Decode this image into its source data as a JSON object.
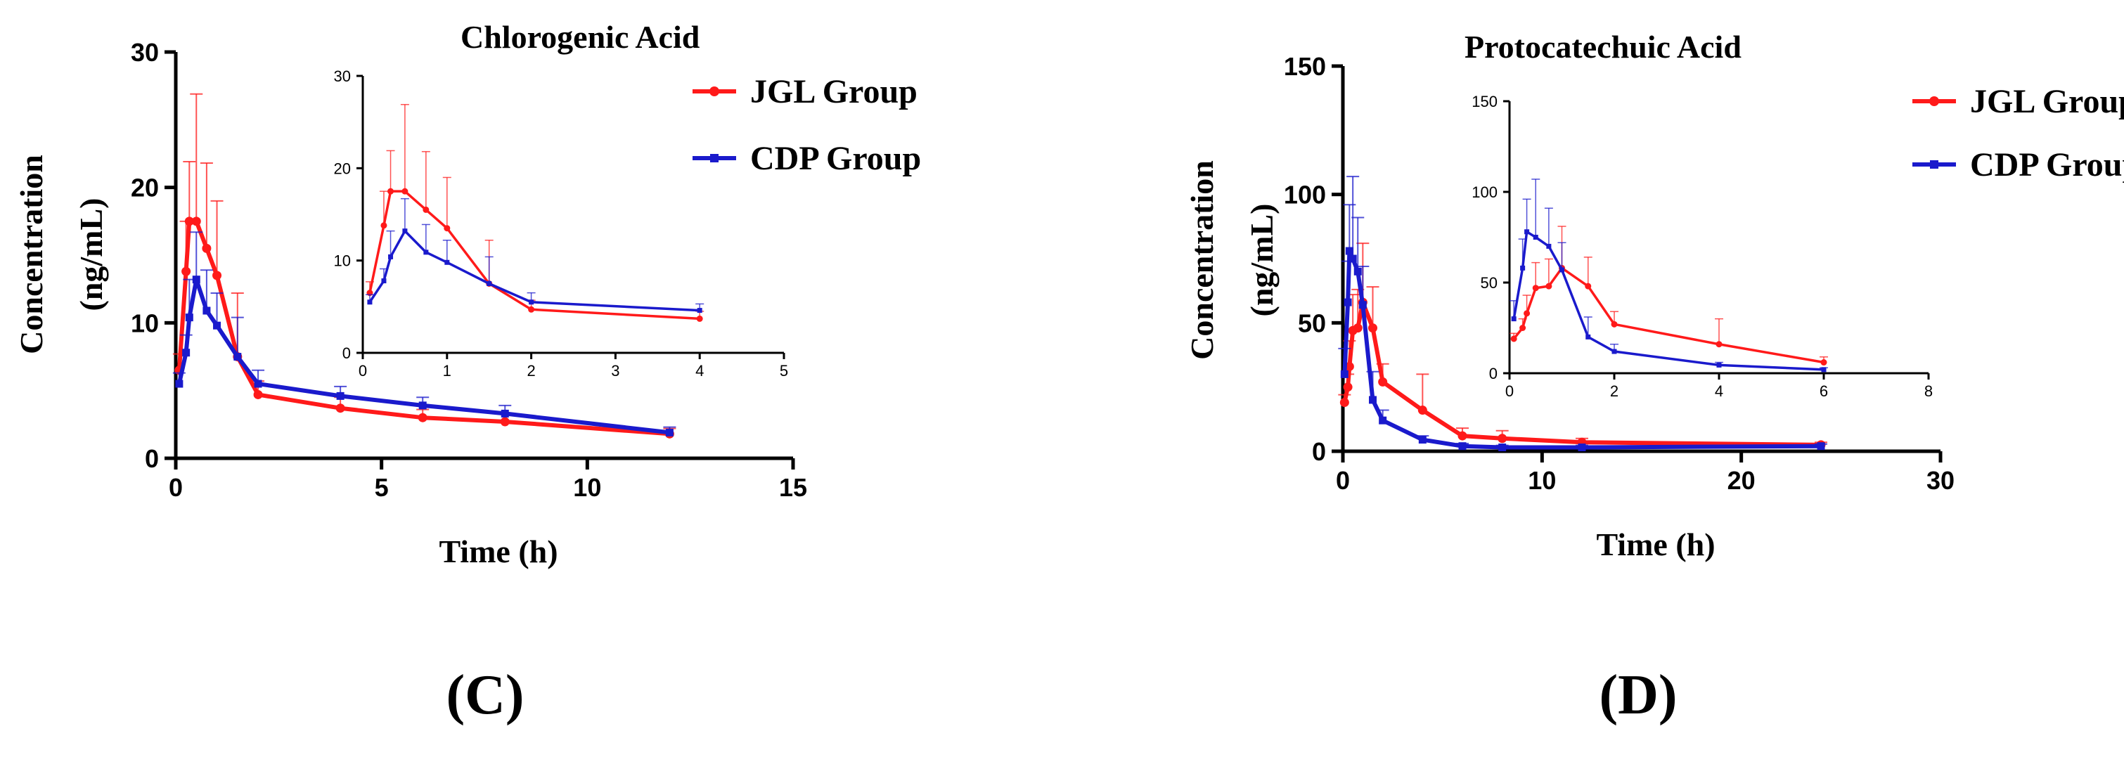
{
  "panels": [
    {
      "panel_label": "(C)",
      "chart_data": {
        "type": "line",
        "title": "",
        "xlabel": "Time (h)",
        "ylabel": "Concentration (ng/mL)",
        "xlim": [
          0,
          15
        ],
        "ylim": [
          0,
          30
        ],
        "xticks": [
          0,
          5,
          10,
          15
        ],
        "yticks": [
          0,
          10,
          20,
          30
        ],
        "legend_position": "top-right",
        "series": [
          {
            "name": "JGL Group",
            "color": "#ff1a1a",
            "x": [
              0.083,
              0.25,
              0.33,
              0.5,
              0.75,
              1,
              1.5,
              2,
              4,
              6,
              8,
              12
            ],
            "y": [
              6.5,
              13.8,
              17.5,
              17.5,
              15.5,
              13.5,
              7.5,
              4.7,
              3.7,
              3.0,
              2.7,
              1.8
            ],
            "err": [
              1.2,
              3.7,
              4.4,
              9.4,
              6.3,
              5.5,
              4.7,
              1.0,
              0.8,
              0.6,
              0.6,
              0.4
            ]
          },
          {
            "name": "CDP Group",
            "color": "#1a1acc",
            "x": [
              0.083,
              0.25,
              0.33,
              0.5,
              0.75,
              1,
              1.5,
              2,
              4,
              6,
              8,
              12
            ],
            "y": [
              5.5,
              7.8,
              10.4,
              13.2,
              10.9,
              9.8,
              7.5,
              5.5,
              4.6,
              3.9,
              3.3,
              1.9
            ],
            "err": [
              0.8,
              1.3,
              2.8,
              3.5,
              3.0,
              2.4,
              2.9,
              1.0,
              0.7,
              0.6,
              0.6,
              0.4
            ]
          }
        ],
        "inset": {
          "title": "Chlorogenic Acid",
          "xlim": [
            0,
            5
          ],
          "ylim": [
            0,
            30
          ],
          "xticks": [
            0,
            1,
            2,
            3,
            4,
            5
          ],
          "yticks": [
            0,
            10,
            20,
            30
          ],
          "series": [
            {
              "name": "JGL Group",
              "color": "#ff1a1a",
              "x": [
                0.083,
                0.25,
                0.33,
                0.5,
                0.75,
                1,
                1.5,
                2,
                4
              ],
              "y": [
                6.5,
                13.8,
                17.5,
                17.5,
                15.5,
                13.5,
                7.5,
                4.7,
                3.7
              ],
              "err": [
                1.2,
                3.7,
                4.4,
                9.4,
                6.3,
                5.5,
                4.7,
                1.0,
                0.8
              ]
            },
            {
              "name": "CDP Group",
              "color": "#1a1acc",
              "x": [
                0.083,
                0.25,
                0.33,
                0.5,
                0.75,
                1,
                1.5,
                2,
                4
              ],
              "y": [
                5.5,
                7.8,
                10.4,
                13.2,
                10.9,
                9.8,
                7.5,
                5.5,
                4.6
              ],
              "err": [
                0.8,
                1.3,
                2.8,
                3.5,
                3.0,
                2.4,
                2.9,
                1.0,
                0.7
              ]
            }
          ]
        }
      }
    },
    {
      "panel_label": "(D)",
      "chart_data": {
        "type": "line",
        "title": "",
        "xlabel": "Time (h)",
        "ylabel": "Concentration (ng/mL)",
        "xlim": [
          0,
          30
        ],
        "ylim": [
          0,
          150
        ],
        "xticks": [
          0,
          10,
          20,
          30
        ],
        "yticks": [
          0,
          50,
          100,
          150
        ],
        "legend_position": "top-right",
        "series": [
          {
            "name": "JGL Group",
            "color": "#ff1a1a",
            "x": [
              0.083,
              0.25,
              0.33,
              0.5,
              0.75,
              1,
              1.5,
              2,
              4,
              6,
              8,
              12,
              24
            ],
            "y": [
              19,
              25,
              33,
              47,
              48,
              58,
              48,
              27,
              16,
              6,
              5,
              3.5,
              2.5
            ],
            "err": [
              3,
              5,
              10,
              14,
              15,
              23,
              16,
              7,
              14,
              3,
              3,
              1.5,
              1
            ]
          },
          {
            "name": "CDP Group",
            "color": "#1a1acc",
            "x": [
              0.083,
              0.25,
              0.33,
              0.5,
              0.75,
              1,
              1.5,
              2,
              4,
              6,
              8,
              12,
              24
            ],
            "y": [
              30,
              58,
              78,
              75,
              70,
              57,
              20,
              12,
              4.5,
              2,
              1.5,
              1.5,
              2
            ],
            "err": [
              10,
              16,
              18,
              32,
              21,
              15,
              11,
              4,
              1.5,
              1,
              0.8,
              0.8,
              0.8
            ]
          }
        ],
        "inset": {
          "title": "Protocatechuic Acid",
          "xlim": [
            0,
            8
          ],
          "ylim": [
            0,
            150
          ],
          "xticks": [
            0,
            2,
            4,
            6,
            8
          ],
          "yticks": [
            0,
            50,
            100,
            150
          ],
          "series": [
            {
              "name": "JGL Group",
              "color": "#ff1a1a",
              "x": [
                0.083,
                0.25,
                0.33,
                0.5,
                0.75,
                1,
                1.5,
                2,
                4,
                6
              ],
              "y": [
                19,
                25,
                33,
                47,
                48,
                58,
                48,
                27,
                16,
                6
              ],
              "err": [
                3,
                5,
                10,
                14,
                15,
                23,
                16,
                7,
                14,
                3
              ]
            },
            {
              "name": "CDP Group",
              "color": "#1a1acc",
              "x": [
                0.083,
                0.25,
                0.33,
                0.5,
                0.75,
                1,
                1.5,
                2,
                4,
                6
              ],
              "y": [
                30,
                58,
                78,
                75,
                70,
                57,
                20,
                12,
                4.5,
                2
              ],
              "err": [
                10,
                16,
                18,
                32,
                21,
                15,
                11,
                4,
                1.5,
                1
              ]
            }
          ]
        }
      }
    }
  ]
}
